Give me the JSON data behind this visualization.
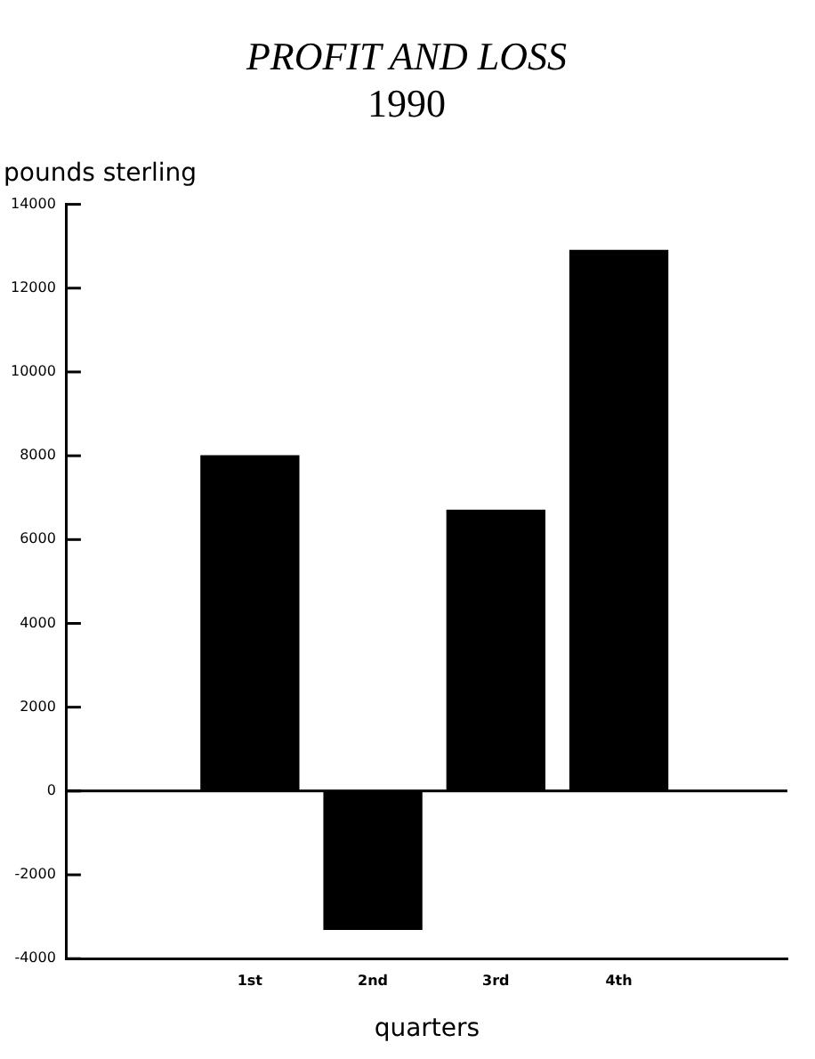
{
  "chart_data": {
    "type": "bar",
    "title": "PROFIT AND LOSS",
    "subtitle": "1990",
    "ylabel": "pounds sterling",
    "xlabel": "quarters",
    "categories": [
      "1st",
      "2nd",
      "3rd",
      "4th"
    ],
    "values": [
      8000,
      -3300,
      6700,
      12900
    ],
    "color": "#000000",
    "ylim": [
      -4000,
      14000
    ],
    "yticks": [
      -4000,
      -2000,
      0,
      2000,
      4000,
      6000,
      8000,
      10000,
      12000,
      14000
    ],
    "grid": false,
    "legend": false,
    "ref_lines": [
      {
        "axis": "y",
        "value": 0,
        "color": "#000000"
      }
    ]
  }
}
